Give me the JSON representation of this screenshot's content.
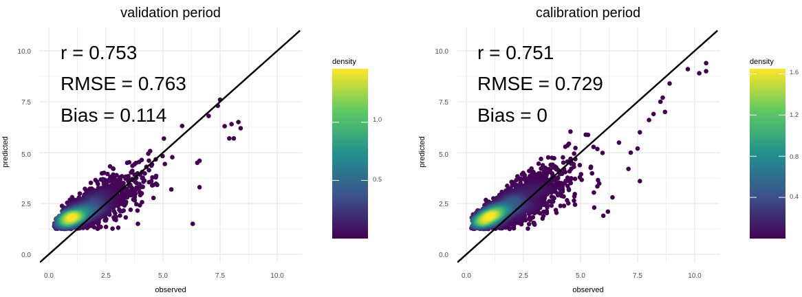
{
  "chart_data": [
    {
      "type": "scatter",
      "title": "validation period",
      "xlabel": "observed",
      "ylabel": "predicted",
      "xlim": [
        -0.4,
        11.0
      ],
      "ylim": [
        -0.3,
        11.1
      ],
      "xticks": [
        "0.0",
        "2.5",
        "5.0",
        "7.5",
        "10.0"
      ],
      "yticks": [
        "0.0",
        "2.5",
        "5.0",
        "7.5",
        "10.0"
      ],
      "grid": true,
      "reference_line": "1:1 identity line (y = x)",
      "annotations": [
        "r = 0.753",
        "RMSE = 0.763",
        "Bias = 0.114"
      ],
      "point_color": "#440154",
      "colorbar": {
        "title": "density",
        "labels": [
          "1.0",
          "0.5"
        ],
        "label_values": [
          1.0,
          0.5
        ],
        "range": [
          0.0,
          1.46
        ]
      },
      "high_density_region": {
        "x": [
          0.5,
          2.5
        ],
        "y": [
          1.2,
          1.7
        ]
      },
      "outlier_points": [
        {
          "x": 7.5,
          "y": 7.6
        },
        {
          "x": 7.4,
          "y": 7.3
        },
        {
          "x": 7.0,
          "y": 6.8
        },
        {
          "x": 8.3,
          "y": 6.5
        },
        {
          "x": 8.0,
          "y": 6.4
        },
        {
          "x": 8.4,
          "y": 6.2
        },
        {
          "x": 7.7,
          "y": 6.3
        },
        {
          "x": 8.1,
          "y": 5.7
        },
        {
          "x": 7.9,
          "y": 5.7
        },
        {
          "x": 6.6,
          "y": 4.6
        },
        {
          "x": 6.5,
          "y": 4.5
        },
        {
          "x": 6.6,
          "y": 3.3
        },
        {
          "x": 6.3,
          "y": 1.5
        }
      ]
    },
    {
      "type": "scatter",
      "title": "calibration period",
      "xlabel": "observed",
      "ylabel": "predicted",
      "xlim": [
        -0.4,
        11.0
      ],
      "ylim": [
        -0.3,
        11.1
      ],
      "xticks": [
        "0.0",
        "2.5",
        "5.0",
        "7.5",
        "10.0"
      ],
      "yticks": [
        "0.0",
        "2.5",
        "5.0",
        "7.5",
        "10.0"
      ],
      "grid": true,
      "reference_line": "1:1 identity line (y = x)",
      "annotations": [
        "r = 0.751",
        "RMSE = 0.729",
        "Bias = 0"
      ],
      "point_color": "#440154",
      "colorbar": {
        "title": "density",
        "labels": [
          "1.6",
          "1.2",
          "0.8",
          "0.4"
        ],
        "label_values": [
          1.6,
          1.2,
          0.8,
          0.4
        ],
        "range": [
          0.0,
          1.65
        ]
      },
      "high_density_region": {
        "x": [
          0.6,
          2.0
        ],
        "y": [
          1.3,
          1.7
        ]
      },
      "outlier_points": [
        {
          "x": 10.5,
          "y": 9.4
        },
        {
          "x": 10.5,
          "y": 9.0
        },
        {
          "x": 10.2,
          "y": 8.9
        },
        {
          "x": 9.7,
          "y": 9.1
        },
        {
          "x": 8.9,
          "y": 8.4
        },
        {
          "x": 8.6,
          "y": 7.7
        },
        {
          "x": 8.5,
          "y": 7.5
        },
        {
          "x": 8.7,
          "y": 7.0
        },
        {
          "x": 8.2,
          "y": 6.9
        },
        {
          "x": 8.0,
          "y": 6.6
        },
        {
          "x": 7.6,
          "y": 6.0
        },
        {
          "x": 7.5,
          "y": 5.2
        },
        {
          "x": 7.2,
          "y": 5.0
        },
        {
          "x": 7.6,
          "y": 3.6
        },
        {
          "x": 7.1,
          "y": 4.2
        },
        {
          "x": 6.4,
          "y": 2.8
        },
        {
          "x": 6.2,
          "y": 2.1
        },
        {
          "x": 6.0,
          "y": 1.9
        },
        {
          "x": 5.6,
          "y": 2.3
        }
      ]
    }
  ]
}
